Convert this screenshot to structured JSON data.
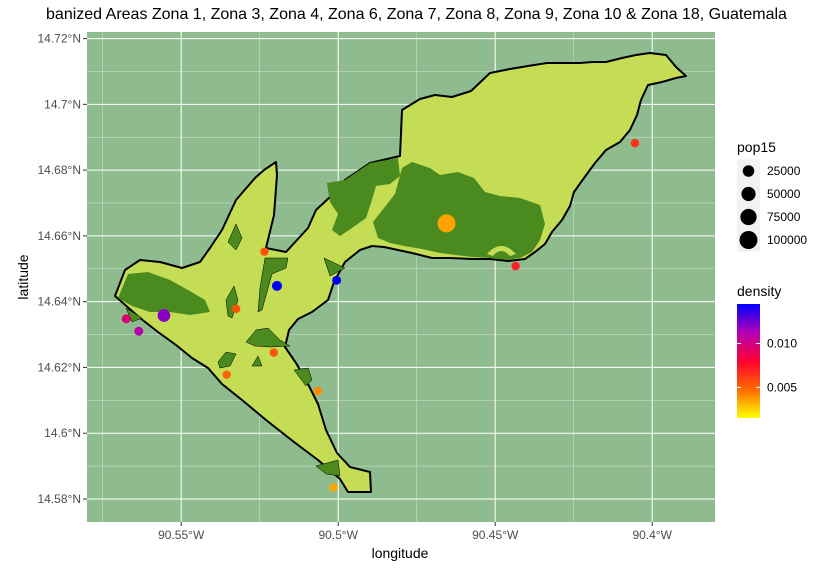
{
  "chart_data": {
    "type": "scatter",
    "title": "banized Areas Zona 1, Zona 3, Zona 4, Zona 6, Zona 7, Zona 8, Zona 9, Zona 10 & Zona 18, Guatemala",
    "xlabel": "longitude",
    "ylabel": "latitude",
    "xlim": [
      -90.58,
      -90.38
    ],
    "ylim": [
      14.573,
      14.722
    ],
    "x_ticks": [
      {
        "value": -90.55,
        "label": "90.55°W"
      },
      {
        "value": -90.5,
        "label": "90.5°W"
      },
      {
        "value": -90.45,
        "label": "90.45°W"
      },
      {
        "value": -90.4,
        "label": "90.4°W"
      }
    ],
    "y_ticks": [
      {
        "value": 14.58,
        "label": "14.58°N"
      },
      {
        "value": 14.6,
        "label": "14.6°N"
      },
      {
        "value": 14.62,
        "label": "14.62°N"
      },
      {
        "value": 14.64,
        "label": "14.64°N"
      },
      {
        "value": 14.66,
        "label": "14.66°N"
      },
      {
        "value": 14.68,
        "label": "14.68°N"
      },
      {
        "value": 14.7,
        "label": "14.7°N"
      },
      {
        "value": 14.72,
        "label": "14.72°N"
      }
    ],
    "grid": true,
    "colors": {
      "panel": "#8fbc8f",
      "grid": "#ffffff",
      "urban_light": "#c5dd55",
      "urban_dark": "#4a8a1e",
      "boundary": "#000000"
    },
    "points": [
      {
        "x": -90.4655,
        "y": 14.6638,
        "pop15": 100000,
        "density": 0.0035
      },
      {
        "x": -90.5555,
        "y": 14.6358,
        "pop15": 35000,
        "density": 0.012
      },
      {
        "x": -90.5195,
        "y": 14.6448,
        "pop15": 15000,
        "density": 0.015
      },
      {
        "x": -90.5005,
        "y": 14.6465,
        "pop15": 9000,
        "density": 0.015
      },
      {
        "x": -90.5675,
        "y": 14.6348,
        "pop15": 9000,
        "density": 0.0095
      },
      {
        "x": -90.5635,
        "y": 14.631,
        "pop15": 9000,
        "density": 0.011
      },
      {
        "x": -90.5235,
        "y": 14.6552,
        "pop15": 7000,
        "density": 0.0055
      },
      {
        "x": -90.5325,
        "y": 14.6378,
        "pop15": 7000,
        "density": 0.0055
      },
      {
        "x": -90.5205,
        "y": 14.6245,
        "pop15": 7000,
        "density": 0.0055
      },
      {
        "x": -90.5355,
        "y": 14.6178,
        "pop15": 7000,
        "density": 0.005
      },
      {
        "x": -90.5065,
        "y": 14.6128,
        "pop15": 7000,
        "density": 0.004
      },
      {
        "x": -90.5015,
        "y": 14.5835,
        "pop15": 7000,
        "density": 0.0035
      },
      {
        "x": -90.4435,
        "y": 14.6508,
        "pop15": 7000,
        "density": 0.007
      },
      {
        "x": -90.4055,
        "y": 14.6882,
        "pop15": 7000,
        "density": 0.0065
      }
    ],
    "legend_size": {
      "title": "pop15",
      "entries": [
        {
          "value": 25000,
          "label": "25000"
        },
        {
          "value": 50000,
          "label": "50000"
        },
        {
          "value": 75000,
          "label": "75000"
        },
        {
          "value": 100000,
          "label": "100000"
        }
      ]
    },
    "legend_color": {
      "title": "density",
      "range": [
        0.0015,
        0.0145
      ],
      "stops": [
        "#ffff00",
        "#ff6a00",
        "#ff0033",
        "#b400b4",
        "#0000ff"
      ],
      "ticks": [
        {
          "value": 0.005,
          "label": "0.005"
        },
        {
          "value": 0.01,
          "label": "0.010"
        }
      ]
    },
    "legend_placement": "right"
  }
}
